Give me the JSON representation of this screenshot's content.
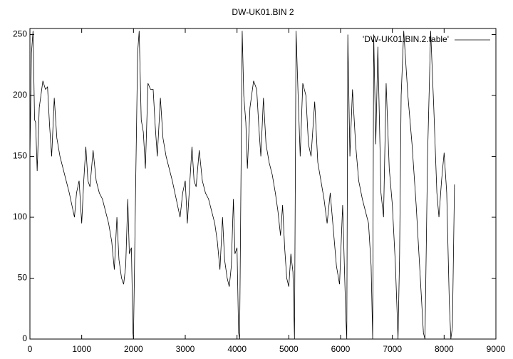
{
  "chart_data": {
    "type": "line",
    "title": "DW-UK01.BIN 2",
    "x": [
      0,
      30,
      60,
      90,
      110,
      140,
      180,
      250,
      300,
      340,
      380,
      420,
      470,
      520,
      580,
      640,
      700,
      760,
      820,
      860,
      900,
      950,
      1000,
      1040,
      1080,
      1120,
      1160,
      1220,
      1280,
      1340,
      1400,
      1460,
      1520,
      1580,
      1630,
      1680,
      1720,
      1770,
      1810,
      1850,
      1890,
      1920,
      1960,
      1990,
      2000,
      2040,
      2080,
      2110,
      2150,
      2190,
      2230,
      2280,
      2330,
      2380,
      2420,
      2460,
      2520,
      2570,
      2630,
      2690,
      2750,
      2800,
      2860,
      2900,
      2950,
      3000,
      3040,
      3090,
      3130,
      3170,
      3210,
      3270,
      3330,
      3390,
      3450,
      3510,
      3570,
      3620,
      3670,
      3720,
      3760,
      3810,
      3850,
      3890,
      3930,
      3960,
      4000,
      4030,
      4050,
      4080,
      4100,
      4130,
      4170,
      4200,
      4250,
      4320,
      4380,
      4420,
      4460,
      4510,
      4560,
      4620,
      4680,
      4740,
      4790,
      4840,
      4880,
      4920,
      4960,
      5000,
      5040,
      5080,
      5110,
      5140,
      5180,
      5220,
      5270,
      5330,
      5380,
      5430,
      5500,
      5560,
      5620,
      5680,
      5740,
      5800,
      5860,
      5920,
      5980,
      6040,
      6100,
      6120,
      6140,
      6180,
      6230,
      6290,
      6350,
      6420,
      6480,
      6540,
      6590,
      6620,
      6640,
      6680,
      6720,
      6780,
      6830,
      6880,
      6940,
      7000,
      7060,
      7110,
      7140,
      7170,
      7220,
      7300,
      7380,
      7460,
      7540,
      7600,
      7630,
      7680,
      7740,
      7800,
      7860,
      7900,
      7950,
      8000,
      8050,
      8100,
      8130,
      8160,
      8200
    ],
    "series": [
      {
        "name": "'DW-UK01.BIN.2.table'",
        "color": "#000000",
        "values": [
          150,
          235,
          253,
          180,
          178,
          138,
          190,
          212,
          205,
          207,
          175,
          150,
          198,
          165,
          150,
          140,
          130,
          120,
          108,
          100,
          120,
          130,
          95,
          130,
          158,
          130,
          125,
          155,
          130,
          120,
          115,
          105,
          95,
          80,
          57,
          100,
          65,
          50,
          45,
          60,
          115,
          70,
          75,
          5,
          0,
          120,
          235,
          253,
          180,
          170,
          140,
          210,
          205,
          205,
          175,
          150,
          198,
          165,
          150,
          140,
          130,
          120,
          108,
          100,
          120,
          130,
          95,
          130,
          158,
          130,
          125,
          155,
          130,
          120,
          115,
          105,
          95,
          80,
          57,
          100,
          65,
          50,
          43,
          60,
          115,
          70,
          75,
          5,
          0,
          150,
          253,
          200,
          178,
          140,
          190,
          212,
          205,
          175,
          150,
          198,
          160,
          145,
          135,
          120,
          105,
          85,
          110,
          75,
          50,
          43,
          70,
          55,
          0,
          253,
          200,
          150,
          210,
          200,
          160,
          150,
          195,
          145,
          130,
          115,
          95,
          120,
          90,
          60,
          45,
          110,
          20,
          0,
          250,
          150,
          205,
          160,
          130,
          115,
          105,
          95,
          60,
          0,
          250,
          160,
          240,
          120,
          100,
          210,
          140,
          110,
          60,
          0,
          70,
          200,
          253,
          200,
          160,
          110,
          50,
          5,
          0,
          150,
          253,
          190,
          120,
          100,
          130,
          153,
          120,
          30,
          0,
          10,
          127
        ]
      }
    ],
    "xlim": [
      0,
      9000
    ],
    "ylim": [
      0,
      255
    ],
    "xticks": [
      0,
      1000,
      2000,
      3000,
      4000,
      5000,
      6000,
      7000,
      8000,
      9000
    ],
    "yticks": [
      0,
      50,
      100,
      150,
      200,
      250
    ],
    "legend": "top-right"
  }
}
